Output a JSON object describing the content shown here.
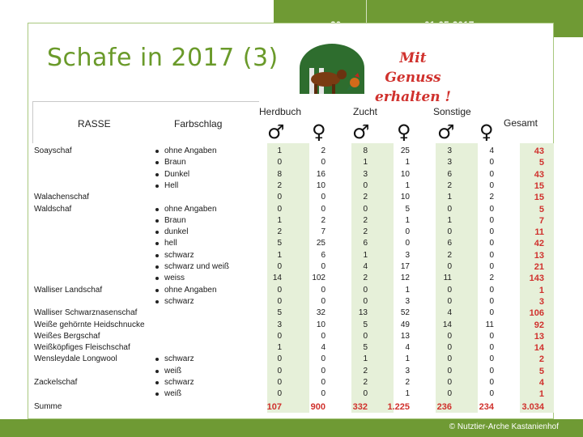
{
  "header": {
    "slide_number": "20",
    "date": "01-05-2017"
  },
  "title": "Schafe in 2017 (3)",
  "logo": {
    "slogan_line1": "Mit Genuss",
    "slogan_line2": "erhalten !"
  },
  "table": {
    "col_rasse": "RASSE",
    "col_farbschlag": "Farbschlag",
    "group_herdbuch": "Herdbuch",
    "group_zucht": "Zucht",
    "group_sonstige": "Sonstige",
    "col_gesamt": "Gesamt",
    "male_symbol": "♂",
    "female_symbol": "♀",
    "rows": [
      {
        "rasse": "Soayschaf",
        "farb": "ohne Angaben",
        "bullet": true,
        "v": [
          "1",
          "2",
          "8",
          "25",
          "3",
          "4"
        ],
        "total": "43"
      },
      {
        "rasse": "",
        "farb": "Braun",
        "bullet": true,
        "v": [
          "0",
          "0",
          "1",
          "1",
          "3",
          "0"
        ],
        "total": "5"
      },
      {
        "rasse": "",
        "farb": "Dunkel",
        "bullet": true,
        "v": [
          "8",
          "16",
          "3",
          "10",
          "6",
          "0"
        ],
        "total": "43"
      },
      {
        "rasse": "",
        "farb": "Hell",
        "bullet": true,
        "v": [
          "2",
          "10",
          "0",
          "1",
          "2",
          "0"
        ],
        "total": "15"
      },
      {
        "rasse": "Walachenschaf",
        "farb": "",
        "bullet": false,
        "v": [
          "0",
          "0",
          "2",
          "10",
          "1",
          "2"
        ],
        "total": "15"
      },
      {
        "rasse": "Waldschaf",
        "farb": "ohne Angaben",
        "bullet": true,
        "v": [
          "0",
          "0",
          "0",
          "5",
          "0",
          "0"
        ],
        "total": "5"
      },
      {
        "rasse": "",
        "farb": "Braun",
        "bullet": true,
        "v": [
          "1",
          "2",
          "2",
          "1",
          "1",
          "0"
        ],
        "total": "7"
      },
      {
        "rasse": "",
        "farb": "dunkel",
        "bullet": true,
        "v": [
          "2",
          "7",
          "2",
          "0",
          "0",
          "0"
        ],
        "total": "11"
      },
      {
        "rasse": "",
        "farb": "hell",
        "bullet": true,
        "v": [
          "5",
          "25",
          "6",
          "0",
          "6",
          "0"
        ],
        "total": "42"
      },
      {
        "rasse": "",
        "farb": "schwarz",
        "bullet": true,
        "v": [
          "1",
          "6",
          "1",
          "3",
          "2",
          "0"
        ],
        "total": "13"
      },
      {
        "rasse": "",
        "farb": "schwarz und weiß",
        "bullet": true,
        "v": [
          "0",
          "0",
          "4",
          "17",
          "0",
          "0"
        ],
        "total": "21"
      },
      {
        "rasse": "",
        "farb": "weiss",
        "bullet": true,
        "v": [
          "14",
          "102",
          "2",
          "12",
          "11",
          "2"
        ],
        "total": "143"
      },
      {
        "rasse": "Walliser Landschaf",
        "farb": "ohne Angaben",
        "bullet": true,
        "v": [
          "0",
          "0",
          "0",
          "1",
          "0",
          "0"
        ],
        "total": "1"
      },
      {
        "rasse": "",
        "farb": "schwarz",
        "bullet": true,
        "v": [
          "0",
          "0",
          "0",
          "3",
          "0",
          "0"
        ],
        "total": "3"
      },
      {
        "rasse": "Walliser Schwarznasenschaf",
        "farb": "",
        "bullet": false,
        "v": [
          "5",
          "32",
          "13",
          "52",
          "4",
          "0"
        ],
        "total": "106"
      },
      {
        "rasse": "Weiße gehörnte Heidschnucke",
        "farb": "",
        "bullet": false,
        "v": [
          "3",
          "10",
          "5",
          "49",
          "14",
          "11"
        ],
        "total": "92"
      },
      {
        "rasse": "Weißes Bergschaf",
        "farb": "",
        "bullet": false,
        "v": [
          "0",
          "0",
          "0",
          "13",
          "0",
          "0"
        ],
        "total": "13"
      },
      {
        "rasse": "Weißköpfiges Fleischschaf",
        "farb": "",
        "bullet": false,
        "v": [
          "1",
          "4",
          "5",
          "4",
          "0",
          "0"
        ],
        "total": "14"
      },
      {
        "rasse": "Wensleydale Longwool",
        "farb": "schwarz",
        "bullet": true,
        "v": [
          "0",
          "0",
          "1",
          "1",
          "0",
          "0"
        ],
        "total": "2"
      },
      {
        "rasse": "",
        "farb": "weiß",
        "bullet": true,
        "v": [
          "0",
          "0",
          "2",
          "3",
          "0",
          "0"
        ],
        "total": "5"
      },
      {
        "rasse": "Zackelschaf",
        "farb": "schwarz",
        "bullet": true,
        "v": [
          "0",
          "0",
          "2",
          "2",
          "0",
          "0"
        ],
        "total": "4"
      },
      {
        "rasse": "",
        "farb": "weiß",
        "bullet": true,
        "v": [
          "0",
          "0",
          "0",
          "1",
          "0",
          "0"
        ],
        "total": "1"
      }
    ],
    "summe": {
      "label": "Summe",
      "v": [
        "107",
        "900",
        "332",
        "1.225",
        "236",
        "234"
      ],
      "total": "3.034"
    }
  },
  "footer": {
    "copyright": "© Nutztier-Arche Kastanienhof"
  },
  "colors": {
    "accent_green": "#6f9a34",
    "title_green": "#6a9a2a",
    "red": "#d0312d",
    "shade": "#e6f0d9"
  }
}
